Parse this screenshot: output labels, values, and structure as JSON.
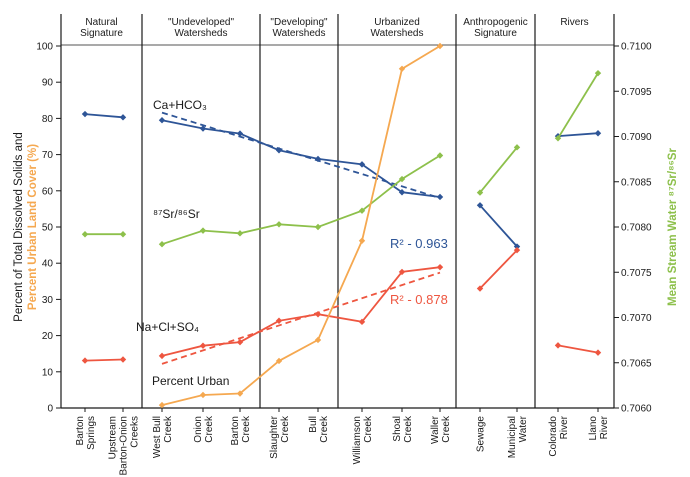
{
  "chart_data": {
    "type": "line",
    "left_axis": {
      "label_parts": [
        {
          "text": "Percent of Total Dissolved Solids and",
          "color": "#1a1a1a"
        },
        {
          "text": "Percent Urban Land Cover (%)",
          "color": "#f5a850"
        }
      ],
      "ylim": [
        0,
        100
      ],
      "ticks": [
        "0",
        "10",
        "20",
        "30",
        "40",
        "50",
        "60",
        "70",
        "80",
        "90",
        "100"
      ]
    },
    "right_axis": {
      "label": "Mean Stream Water ⁸⁷Sr/⁸⁶Sr",
      "ylim": [
        0.706,
        0.71
      ],
      "ticks": [
        "0.7060",
        "0.7065",
        "0.7070",
        "0.7075",
        "0.7080",
        "0.7085",
        "0.7090",
        "0.7095",
        "0.7100"
      ]
    },
    "groups": [
      {
        "label": [
          "Natural",
          "Signature"
        ],
        "span": [
          0,
          1
        ]
      },
      {
        "label": [
          "\"Undeveloped\"",
          "Watersheds"
        ],
        "span": [
          2,
          4
        ]
      },
      {
        "label": [
          "\"Developing\"",
          "Watersheds"
        ],
        "span": [
          5,
          6
        ]
      },
      {
        "label": [
          "Urbanized",
          "Watersheds"
        ],
        "span": [
          7,
          9
        ]
      },
      {
        "label": [
          "Anthropogenic",
          "Signature"
        ],
        "span": [
          10,
          11
        ]
      },
      {
        "label": [
          "Rivers"
        ],
        "span": [
          12,
          13
        ]
      }
    ],
    "categories": [
      [
        "Barton",
        "Springs"
      ],
      [
        "Upstream",
        "Barton-Onion",
        "Creeks"
      ],
      [
        "West Bull",
        "Creek"
      ],
      [
        "Onion",
        "Creek"
      ],
      [
        "Barton",
        "Creek"
      ],
      [
        "Slaughter",
        "Creek"
      ],
      [
        "Bull",
        "Creek"
      ],
      [
        "Williamson",
        "Creek"
      ],
      [
        "Shoal",
        "Creek"
      ],
      [
        "Waller",
        "Creek"
      ],
      [
        "Sewage"
      ],
      [
        "Municipal",
        "Water"
      ],
      [
        "Colorado",
        "River"
      ],
      [
        "Llano",
        "River"
      ]
    ],
    "series": [
      {
        "name": "Ca+HCO3",
        "axis": "left",
        "color": "#2e5597",
        "segments": [
          [
            [
              0,
              81.2
            ],
            [
              1,
              80.3
            ]
          ],
          [
            [
              2,
              79.5
            ],
            [
              3,
              77.2
            ],
            [
              4,
              75.8
            ],
            [
              5,
              71.2
            ],
            [
              6,
              68.8
            ],
            [
              7,
              67.3
            ],
            [
              8,
              59.6
            ],
            [
              9,
              58.3
            ]
          ],
          [
            [
              10,
              56.0
            ],
            [
              11,
              44.6
            ]
          ],
          [
            [
              12,
              75.1
            ],
            [
              13,
              75.9
            ]
          ]
        ]
      },
      {
        "name": "87Sr/86Sr",
        "axis": "right",
        "color": "#8dc04b",
        "segments": [
          [
            [
              0,
              0.70792
            ],
            [
              1,
              0.70792
            ]
          ],
          [
            [
              2,
              0.70781
            ],
            [
              3,
              0.70796
            ],
            [
              4,
              0.70793
            ],
            [
              5,
              0.70803
            ],
            [
              6,
              0.708
            ],
            [
              7,
              0.70818
            ],
            [
              8,
              0.70853
            ],
            [
              9,
              0.70879
            ]
          ],
          [
            [
              10,
              0.70838
            ],
            [
              11,
              0.70888
            ]
          ],
          [
            [
              12,
              0.70898
            ],
            [
              13,
              0.7097
            ]
          ]
        ]
      },
      {
        "name": "Na+Cl+SO4",
        "axis": "left",
        "color": "#ee5640",
        "segments": [
          [
            [
              0,
              13.1
            ],
            [
              1,
              13.4
            ]
          ],
          [
            [
              2,
              14.4
            ],
            [
              3,
              17.2
            ],
            [
              4,
              18.2
            ],
            [
              5,
              24.1
            ],
            [
              6,
              25.9
            ],
            [
              7,
              23.8
            ],
            [
              8,
              37.6
            ],
            [
              9,
              38.9
            ]
          ],
          [
            [
              10,
              33.0
            ],
            [
              11,
              43.6
            ]
          ],
          [
            [
              12,
              17.3
            ],
            [
              13,
              15.3
            ]
          ]
        ]
      },
      {
        "name": "Percent Urban",
        "axis": "left",
        "color": "#f5a850",
        "segments": [
          [
            [
              2,
              0.8
            ],
            [
              3,
              3.6
            ],
            [
              4,
              4.0
            ],
            [
              5,
              13.0
            ],
            [
              6,
              18.8
            ],
            [
              7,
              46.2
            ],
            [
              8,
              93.7
            ],
            [
              9,
              100.0
            ]
          ]
        ]
      }
    ],
    "trendlines": [
      {
        "series": "Ca+HCO3",
        "from": [
          2,
          81.6
        ],
        "to": [
          9,
          58.0
        ],
        "r2": "0.963",
        "color": "#2e5597"
      },
      {
        "series": "Na+Cl+SO4",
        "from": [
          2,
          12.2
        ],
        "to": [
          9,
          37.4
        ],
        "r2": "0.878",
        "color": "#ee5640"
      }
    ],
    "annotations": [
      {
        "text": "Ca+HCO₃",
        "color": "#1a1a1a"
      },
      {
        "text": "⁸⁷Sr/⁸⁶Sr",
        "color": "#1a1a1a"
      },
      {
        "text": "Na+Cl+SO₄",
        "color": "#1a1a1a"
      },
      {
        "text": "Percent Urban",
        "color": "#1a1a1a"
      },
      {
        "text": "R² - 0.963",
        "color": "#2e5597"
      },
      {
        "text": "R² - 0.878",
        "color": "#ee5640"
      }
    ],
    "grid": false,
    "legend": "none"
  }
}
